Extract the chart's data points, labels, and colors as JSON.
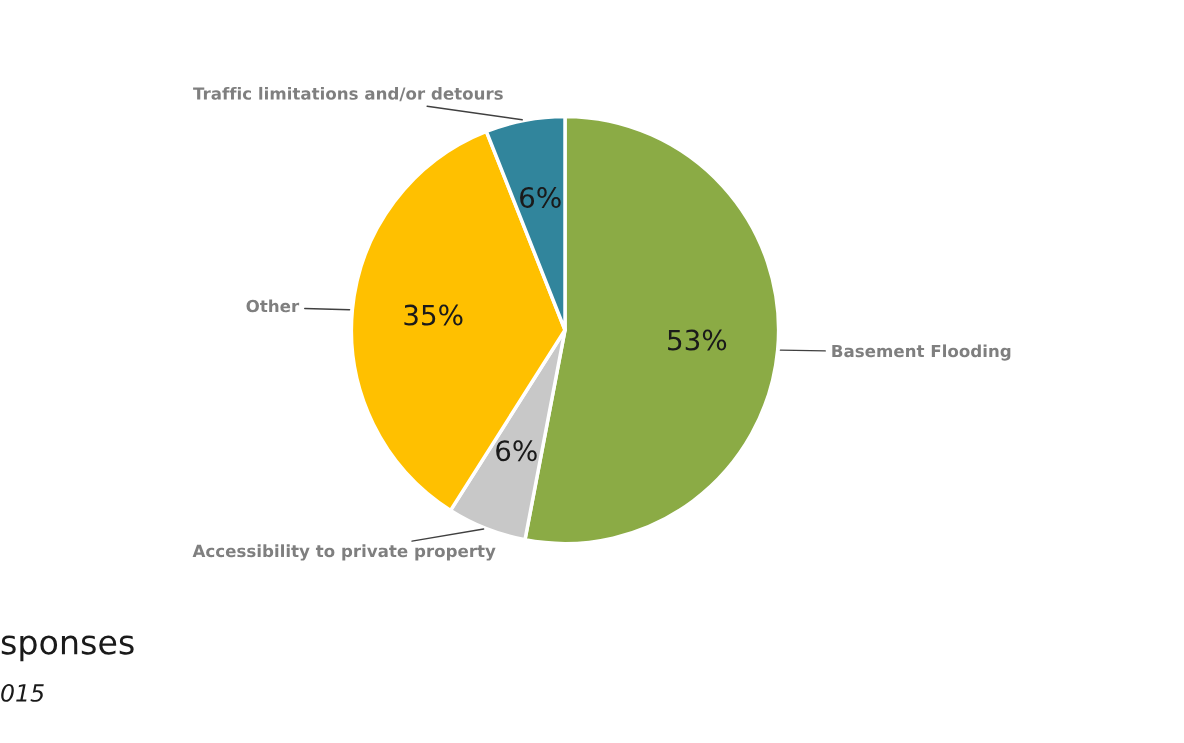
{
  "chart_data": {
    "type": "pie",
    "categories": [
      "Basement Flooding",
      "Accessibility to private property",
      "Other",
      "Traffic limitations and/or detours"
    ],
    "values": [
      53,
      6,
      35,
      6
    ],
    "colors": [
      "#8bab45",
      "#c8c8c8",
      "#ffc000",
      "#31859c"
    ],
    "value_labels": [
      "53%",
      "6%",
      "35%",
      "6%"
    ],
    "annotations": [
      "sponses",
      "015"
    ]
  }
}
